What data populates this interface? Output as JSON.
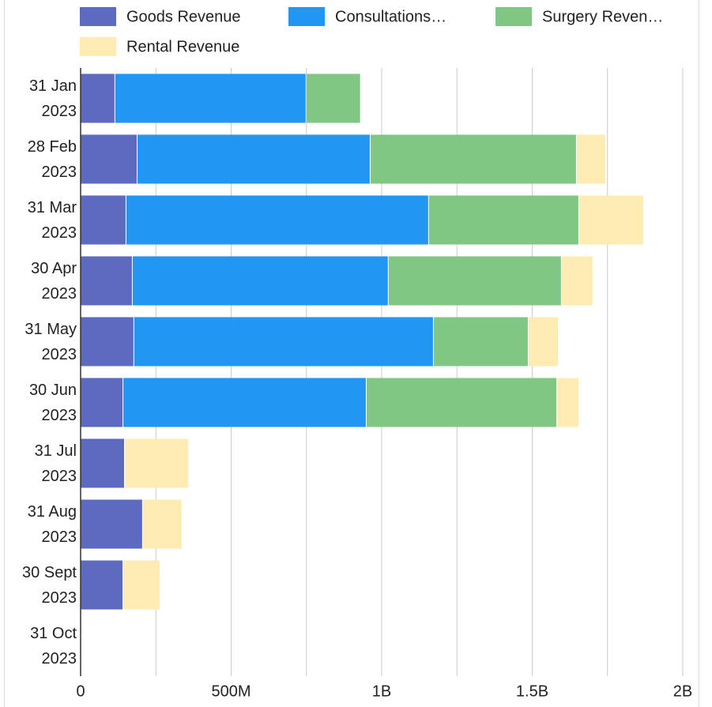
{
  "chart_data": {
    "type": "stacked-bar-horizontal",
    "categories": [
      "31 Jan 2023",
      "28 Feb 2023",
      "31 Mar 2023",
      "30 Apr 2023",
      "31 May 2023",
      "30 Jun 2023",
      "31 Jul 2023",
      "31 Aug 2023",
      "30 Sept 2023",
      "31 Oct 2023"
    ],
    "series": [
      {
        "name": "Goods Revenue",
        "color": "#5c6bc0",
        "values": [
          115000000,
          189000000,
          152000000,
          173000000,
          178000000,
          142000000,
          147000000,
          207000000,
          142000000,
          0
        ]
      },
      {
        "name": "Consultations…",
        "color": "#2196f3",
        "values": [
          635000000,
          774000000,
          1005000000,
          850000000,
          995000000,
          808000000,
          0,
          0,
          0,
          0
        ]
      },
      {
        "name": "Surgery Reven…",
        "color": "#81c784",
        "values": [
          181000000,
          685000000,
          499000000,
          575000000,
          315000000,
          633000000,
          0,
          0,
          0,
          0
        ]
      },
      {
        "name": "Rental Revenue",
        "color": "#ffecb3",
        "values": [
          0,
          97000000,
          215000000,
          105000000,
          100000000,
          73000000,
          213000000,
          131000000,
          123000000,
          0
        ]
      }
    ],
    "xlim": [
      0,
      2000000000
    ],
    "xticks": [
      0,
      {
        "value": 500000000,
        "label": "500M"
      },
      {
        "value": 1000000000,
        "label": "1B"
      },
      {
        "value": 1500000000,
        "label": "1.5B"
      },
      {
        "value": 2000000000,
        "label": "2B"
      }
    ],
    "grid": true,
    "legend": "top"
  }
}
